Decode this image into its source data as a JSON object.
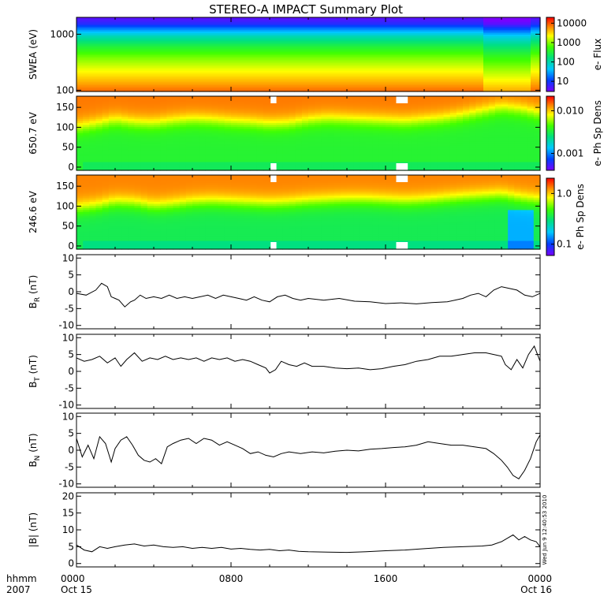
{
  "title": "STEREO-A IMPACT Summary Plot",
  "timestamp": "Wed Jun 9 12:40:53 2010",
  "time_axis": {
    "label_line1": "hhmm",
    "label_line2": "2007",
    "ticks": [
      {
        "hours": 0,
        "line1": "0000",
        "line2": "Oct 15"
      },
      {
        "hours": 8,
        "line1": "0800",
        "line2": ""
      },
      {
        "hours": 16,
        "line1": "1600",
        "line2": ""
      },
      {
        "hours": 24,
        "line1": "0000",
        "line2": "Oct 16"
      }
    ],
    "range_hours": [
      0,
      24
    ]
  },
  "colors": {
    "line": "#000000",
    "gap": "#ffffff"
  },
  "chart_data": [
    {
      "type": "heatmap",
      "panel": "swea",
      "ylabel": "SWEA (eV)",
      "yscale": "log",
      "ylim": [
        95,
        2000
      ],
      "yticks": [
        100,
        1000
      ],
      "ytick_labels": [
        "100",
        "1000"
      ],
      "colorbar_label": "e- Flux",
      "colorbar_scale": "log",
      "colorbar_range": [
        3,
        20000
      ],
      "colorbar_ticks": [
        10,
        100,
        1000,
        10000
      ],
      "colorbar_tick_labels": [
        "10",
        "100",
        "1000",
        "10000"
      ],
      "description_profile": {
        "energy_eV": [
          100,
          150,
          250,
          400,
          600,
          900,
          1200,
          1500,
          2000
        ],
        "log_flux": [
          3.9,
          3.6,
          3.25,
          2.9,
          2.5,
          2.0,
          1.4,
          0.9,
          0.6
        ]
      }
    },
    {
      "type": "heatmap",
      "panel": "pad650",
      "ylabel": "650.7 eV",
      "ylim": [
        -8,
        178
      ],
      "yticks": [
        0,
        50,
        100,
        150
      ],
      "ytick_labels": [
        "0",
        "50",
        "100",
        "150"
      ],
      "colorbar_label": "e- Ph Sp Dens",
      "colorbar_scale": "log",
      "colorbar_range": [
        0.0004,
        0.022
      ],
      "colorbar_ticks": [
        0.001,
        0.01
      ],
      "colorbar_tick_labels": [
        "0.001",
        "0.010"
      ],
      "gaps_hours": [
        [
          10.05,
          10.35
        ],
        [
          16.55,
          17.15
        ]
      ],
      "boundary_deg": [
        100,
        108,
        118,
        112,
        110,
        116,
        120,
        118,
        114,
        112,
        108,
        110,
        118,
        122,
        120,
        118,
        116,
        114,
        118,
        122,
        130,
        140,
        150,
        145,
        135
      ],
      "high_value": 0.014,
      "low_value": 0.0035
    },
    {
      "type": "heatmap",
      "panel": "pad246",
      "ylabel": "246.6 eV",
      "ylim": [
        -8,
        178
      ],
      "yticks": [
        0,
        50,
        100,
        150
      ],
      "ytick_labels": [
        "0",
        "50",
        "100",
        "150"
      ],
      "colorbar_label": "e- Ph Sp Dens",
      "colorbar_scale": "log",
      "colorbar_range": [
        0.06,
        2.0
      ],
      "colorbar_ticks": [
        0.1,
        1.0
      ],
      "colorbar_tick_labels": [
        "0.1",
        "1.0"
      ],
      "gaps_hours": [
        [
          10.05,
          10.35
        ],
        [
          16.55,
          17.15
        ]
      ],
      "boundary_deg": [
        95,
        100,
        110,
        108,
        100,
        104,
        110,
        112,
        110,
        108,
        106,
        108,
        112,
        114,
        116,
        116,
        114,
        112,
        114,
        118,
        122,
        125,
        128,
        120,
        115
      ],
      "high_value": 1.3,
      "low_value": 0.35
    },
    {
      "type": "line",
      "panel": "BR",
      "ylabel_main": "B",
      "ylabel_sub": "R",
      "ylabel_unit": " (nT)",
      "ylim": [
        -11,
        11
      ],
      "yticks": [
        -10,
        -5,
        0,
        5,
        10
      ],
      "ytick_labels": [
        "-10",
        "-5",
        "0",
        "5",
        "10"
      ],
      "x_hours": [
        0,
        0.5,
        1,
        1.3,
        1.6,
        1.8,
        2.0,
        2.2,
        2.5,
        2.8,
        3.0,
        3.3,
        3.6,
        4.0,
        4.4,
        4.8,
        5.2,
        5.6,
        6.0,
        6.4,
        6.8,
        7.2,
        7.6,
        8.0,
        8.4,
        8.8,
        9.2,
        9.6,
        10.0,
        10.4,
        10.8,
        11.2,
        11.6,
        12.0,
        12.8,
        13.6,
        14.4,
        15.2,
        16.0,
        16.8,
        17.6,
        18.4,
        19.2,
        20.0,
        20.4,
        20.8,
        21.2,
        21.6,
        22.0,
        22.4,
        22.8,
        23.2,
        23.6,
        24.0
      ],
      "y": [
        -0.5,
        -1.0,
        0.5,
        2.5,
        1.5,
        -1.5,
        -2.0,
        -2.5,
        -4.5,
        -3.0,
        -2.5,
        -1.0,
        -2.0,
        -1.5,
        -2.0,
        -1.0,
        -2.0,
        -1.5,
        -2.0,
        -1.5,
        -1.0,
        -2.0,
        -1.0,
        -1.5,
        -2.0,
        -2.5,
        -1.5,
        -2.5,
        -3.0,
        -1.5,
        -1.0,
        -2.0,
        -2.5,
        -2.0,
        -2.5,
        -2.0,
        -2.8,
        -3.0,
        -3.5,
        -3.3,
        -3.6,
        -3.2,
        -3.0,
        -2.0,
        -1.0,
        -0.5,
        -1.5,
        0.5,
        1.5,
        1.0,
        0.5,
        -1.0,
        -1.5,
        -0.5
      ]
    },
    {
      "type": "line",
      "panel": "BT",
      "ylabel_main": "B",
      "ylabel_sub": "T",
      "ylabel_unit": " (nT)",
      "ylim": [
        -11,
        11
      ],
      "yticks": [
        -10,
        -5,
        0,
        5,
        10
      ],
      "ytick_labels": [
        "-10",
        "-5",
        "0",
        "5",
        "10"
      ],
      "x_hours": [
        0,
        0.4,
        0.8,
        1.2,
        1.6,
        2.0,
        2.3,
        2.6,
        3.0,
        3.4,
        3.8,
        4.2,
        4.6,
        5.0,
        5.4,
        5.8,
        6.2,
        6.6,
        7.0,
        7.4,
        7.8,
        8.2,
        8.6,
        9.0,
        9.4,
        9.8,
        10.0,
        10.3,
        10.6,
        11.0,
        11.4,
        11.8,
        12.2,
        12.8,
        13.4,
        14.0,
        14.6,
        15.2,
        15.8,
        16.4,
        17.0,
        17.6,
        18.2,
        18.8,
        19.4,
        20.0,
        20.6,
        21.2,
        21.6,
        22.0,
        22.2,
        22.5,
        22.8,
        23.1,
        23.4,
        23.7,
        24.0
      ],
      "y": [
        4.0,
        3.0,
        3.5,
        4.5,
        2.5,
        4.0,
        1.5,
        3.5,
        5.5,
        3.0,
        4.0,
        3.5,
        4.5,
        3.5,
        4.0,
        3.5,
        4.0,
        3.0,
        4.0,
        3.5,
        4.0,
        3.0,
        3.5,
        3.0,
        2.0,
        1.0,
        -0.5,
        0.5,
        3.0,
        2.0,
        1.5,
        2.5,
        1.5,
        1.5,
        1.0,
        0.8,
        1.0,
        0.5,
        0.8,
        1.5,
        2.0,
        3.0,
        3.5,
        4.5,
        4.5,
        5.0,
        5.5,
        5.5,
        5.0,
        4.5,
        2.0,
        0.5,
        3.5,
        1.0,
        5.0,
        7.5,
        3.0
      ]
    },
    {
      "type": "line",
      "panel": "BN",
      "ylabel_main": "B",
      "ylabel_sub": "N",
      "ylabel_unit": " (nT)",
      "ylim": [
        -11,
        11
      ],
      "yticks": [
        -10,
        -5,
        0,
        5,
        10
      ],
      "ytick_labels": [
        "-10",
        "-5",
        "0",
        "5",
        "10"
      ],
      "x_hours": [
        0,
        0.3,
        0.6,
        0.9,
        1.2,
        1.5,
        1.8,
        2.0,
        2.3,
        2.6,
        2.9,
        3.2,
        3.5,
        3.8,
        4.1,
        4.4,
        4.7,
        5.0,
        5.4,
        5.8,
        6.2,
        6.6,
        7.0,
        7.4,
        7.8,
        8.2,
        8.6,
        9.0,
        9.4,
        9.8,
        10.2,
        10.6,
        11.0,
        11.6,
        12.2,
        12.8,
        13.4,
        14.0,
        14.6,
        15.2,
        15.8,
        16.4,
        17.0,
        17.6,
        18.2,
        18.8,
        19.4,
        20.0,
        20.6,
        21.2,
        21.6,
        22.0,
        22.3,
        22.6,
        22.9,
        23.2,
        23.5,
        23.8,
        24.0
      ],
      "y": [
        3.5,
        -2.0,
        1.5,
        -2.5,
        4.0,
        2.0,
        -3.5,
        0.5,
        3.0,
        4.0,
        1.5,
        -1.5,
        -3.0,
        -3.5,
        -2.5,
        -4.0,
        1.0,
        2.0,
        3.0,
        3.5,
        2.0,
        3.5,
        3.0,
        1.5,
        2.5,
        1.5,
        0.5,
        -1.0,
        -0.5,
        -1.5,
        -2.0,
        -1.0,
        -0.5,
        -1.0,
        -0.5,
        -0.8,
        -0.3,
        0.0,
        -0.2,
        0.3,
        0.5,
        0.8,
        1.0,
        1.5,
        2.5,
        2.0,
        1.5,
        1.5,
        1.0,
        0.5,
        -1.0,
        -3.0,
        -5.0,
        -7.5,
        -8.5,
        -6.0,
        -2.5,
        2.5,
        4.5
      ]
    },
    {
      "type": "line",
      "panel": "Bmag",
      "ylabel_main": "|B|",
      "ylabel_sub": "",
      "ylabel_unit": " (nT)",
      "ylim": [
        -1,
        21
      ],
      "yticks": [
        0,
        5,
        10,
        15,
        20
      ],
      "ytick_labels": [
        "0",
        "5",
        "10",
        "15",
        "20"
      ],
      "x_hours": [
        0,
        0.4,
        0.8,
        1.2,
        1.6,
        2.0,
        2.5,
        3.0,
        3.5,
        4.0,
        4.5,
        5.0,
        5.5,
        6.0,
        6.5,
        7.0,
        7.5,
        8.0,
        8.5,
        9.0,
        9.5,
        10.0,
        10.5,
        11.0,
        11.5,
        12.0,
        13.0,
        14.0,
        15.0,
        16.0,
        17.0,
        18.0,
        19.0,
        20.0,
        21.0,
        21.5,
        22.0,
        22.3,
        22.6,
        22.9,
        23.2,
        23.5,
        23.8,
        24.0
      ],
      "y": [
        5.5,
        4.0,
        3.5,
        5.0,
        4.5,
        5.0,
        5.5,
        5.8,
        5.2,
        5.5,
        5.0,
        4.8,
        5.0,
        4.5,
        4.8,
        4.5,
        4.8,
        4.3,
        4.5,
        4.2,
        4.0,
        4.2,
        3.8,
        4.0,
        3.6,
        3.5,
        3.4,
        3.3,
        3.5,
        3.8,
        4.0,
        4.4,
        4.8,
        5.0,
        5.2,
        5.5,
        6.5,
        7.5,
        8.5,
        7.0,
        8.0,
        7.0,
        6.5,
        5.0
      ]
    }
  ]
}
